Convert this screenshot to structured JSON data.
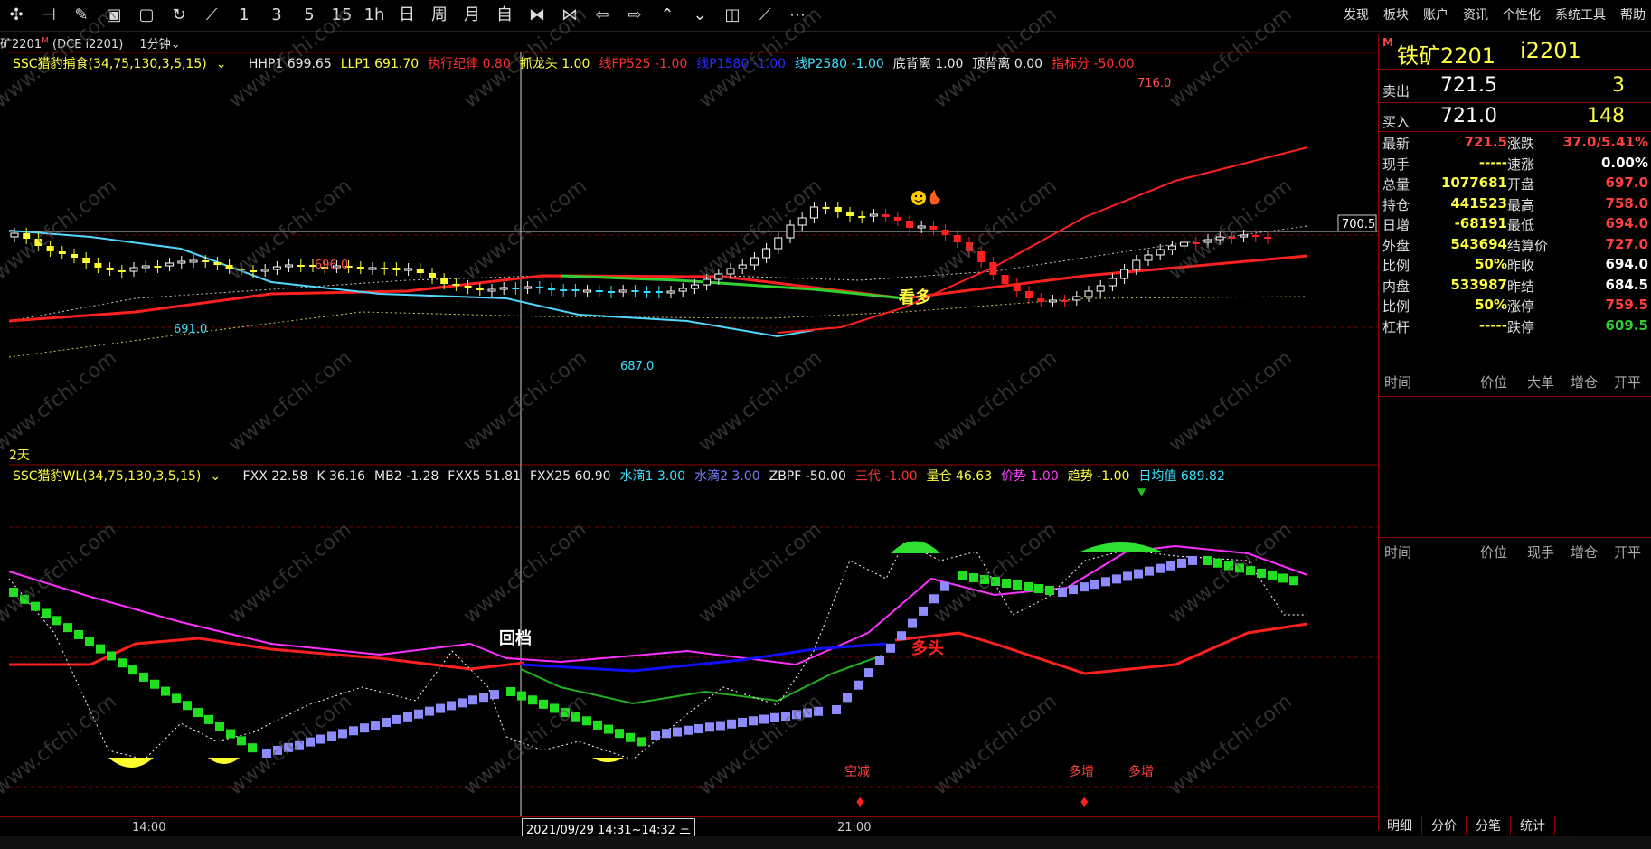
{
  "toolbar": {
    "icons": [
      "tb-cross-icon",
      "tb-bar-icon",
      "tb-draw-icon",
      "tb-screen-icon",
      "tb-save-icon",
      "tb-refresh-icon",
      "tb-line-icon"
    ],
    "periods": [
      "1",
      "3",
      "5",
      "15",
      "1h",
      "日",
      "周",
      "月",
      "自"
    ],
    "menu": [
      "发现",
      "板块",
      "账户",
      "资讯",
      "个性化",
      "系统工具",
      "帮助"
    ]
  },
  "symbol_bar": {
    "name": "矿2201",
    "superscript": "M",
    "code": "(DCE i2201)",
    "period": "1分钟"
  },
  "main_indicator": {
    "name": "SSC猎豹捕食(34,75,130,3,5,15)",
    "items": [
      {
        "label": "HHP1 699.65",
        "color": "#e8e8e8"
      },
      {
        "label": "LLP1 691.70",
        "color": "#ffff40"
      },
      {
        "label": "执行纪律 0.80",
        "color": "#ff3030"
      },
      {
        "label": "抓龙头 1.00",
        "color": "#ffff40"
      },
      {
        "label": "线FP525 -1.00",
        "color": "#ff3030"
      },
      {
        "label": "线P1580 -1.00",
        "color": "#2a2aff"
      },
      {
        "label": "线P2580 -1.00",
        "color": "#40e0ff"
      },
      {
        "label": "底背离 1.00",
        "color": "#e8e8e8"
      },
      {
        "label": "顶背离 0.00",
        "color": "#e8e8e8"
      },
      {
        "label": "指标分 -50.00",
        "color": "#ff3030"
      }
    ]
  },
  "sub_indicator": {
    "name": "SSC猎豹WL(34,75,130,3,5,15)",
    "items": [
      {
        "label": "FXX 22.58",
        "color": "#e8e8e8"
      },
      {
        "label": "K 36.16",
        "color": "#e8e8e8"
      },
      {
        "label": "MB2 -1.28",
        "color": "#e8e8e8"
      },
      {
        "label": "FXX5 51.81",
        "color": "#e8e8e8"
      },
      {
        "label": "FXX25 60.90",
        "color": "#e8e8e8"
      },
      {
        "label": "水滴1 3.00",
        "color": "#40e0ff"
      },
      {
        "label": "水滴2 3.00",
        "color": "#7b7bff"
      },
      {
        "label": "ZBPF -50.00",
        "color": "#e8e8e8"
      },
      {
        "label": "三代 -1.00",
        "color": "#ff3030"
      },
      {
        "label": "量仓 46.63",
        "color": "#ffff40"
      },
      {
        "label": "价势 1.00",
        "color": "#ff40ff"
      },
      {
        "label": "趋势 -1.00",
        "color": "#ffff40"
      },
      {
        "label": "日均值 689.82",
        "color": "#40e0ff"
      }
    ]
  },
  "chart_labels": {
    "high": "716.0",
    "low1": "691.0",
    "peak1": "696.0",
    "low2": "687.0",
    "price_tag": "700.5",
    "kanduo": "看多",
    "huidang": "回档",
    "duotou": "多头",
    "kongjian": "空减",
    "duozeng1": "多增",
    "duozeng2": "多增",
    "two_days": "2天",
    "watermark": "www.cfchi.com"
  },
  "xaxis": {
    "t1": "14:00",
    "cursor": "2021/09/29 14:31~14:32 三",
    "t2": "21:00"
  },
  "quote": {
    "title": "铁矿2201",
    "code": "i2201",
    "flag": "M",
    "sell_label": "卖出",
    "sell_price": "721.5",
    "sell_vol": "3",
    "buy_label": "买入",
    "buy_price": "721.0",
    "buy_vol": "148",
    "rows": [
      {
        "l1": "最新",
        "v1": "721.5",
        "c1": "#ff4040",
        "l2": "涨跌",
        "v2": "37.0/5.41%",
        "c2": "#ff4040"
      },
      {
        "l1": "现手",
        "v1": "-----",
        "c1": "#ffff40",
        "l2": "速涨",
        "v2": "0.00%",
        "c2": "#ffffff"
      },
      {
        "l1": "总量",
        "v1": "1077681",
        "c1": "#ffff40",
        "l2": "开盘",
        "v2": "697.0",
        "c2": "#ff4040"
      },
      {
        "l1": "持仓",
        "v1": "441523",
        "c1": "#ffff40",
        "l2": "最高",
        "v2": "758.0",
        "c2": "#ff4040"
      },
      {
        "l1": "日增",
        "v1": "-68191",
        "c1": "#ffff40",
        "l2": "最低",
        "v2": "694.0",
        "c2": "#ff4040"
      },
      {
        "l1": "外盘",
        "v1": "543694",
        "c1": "#ffff40",
        "l2": "结算价",
        "v2": "727.0",
        "c2": "#ff4040"
      },
      {
        "l1": "比例",
        "v1": "50%",
        "c1": "#ffff40",
        "l2": "昨收",
        "v2": "694.0",
        "c2": "#ffffff"
      },
      {
        "l1": "内盘",
        "v1": "533987",
        "c1": "#ffff40",
        "l2": "昨结",
        "v2": "684.5",
        "c2": "#ffffff"
      },
      {
        "l1": "比例",
        "v1": "50%",
        "c1": "#ffff40",
        "l2": "涨停",
        "v2": "759.5",
        "c2": "#ff4040"
      },
      {
        "l1": "杠杆",
        "v1": "-----",
        "c1": "#ffff40",
        "l2": "跌停",
        "v2": "609.5",
        "c2": "#30d030"
      }
    ],
    "tick_heads1": [
      "时间",
      "价位",
      "大单",
      "增仓",
      "开平"
    ],
    "tick_heads2": [
      "时间",
      "价位",
      "现手",
      "增仓",
      "开平"
    ],
    "tabs": [
      "明细",
      "分价",
      "分笔",
      "统计"
    ]
  }
}
